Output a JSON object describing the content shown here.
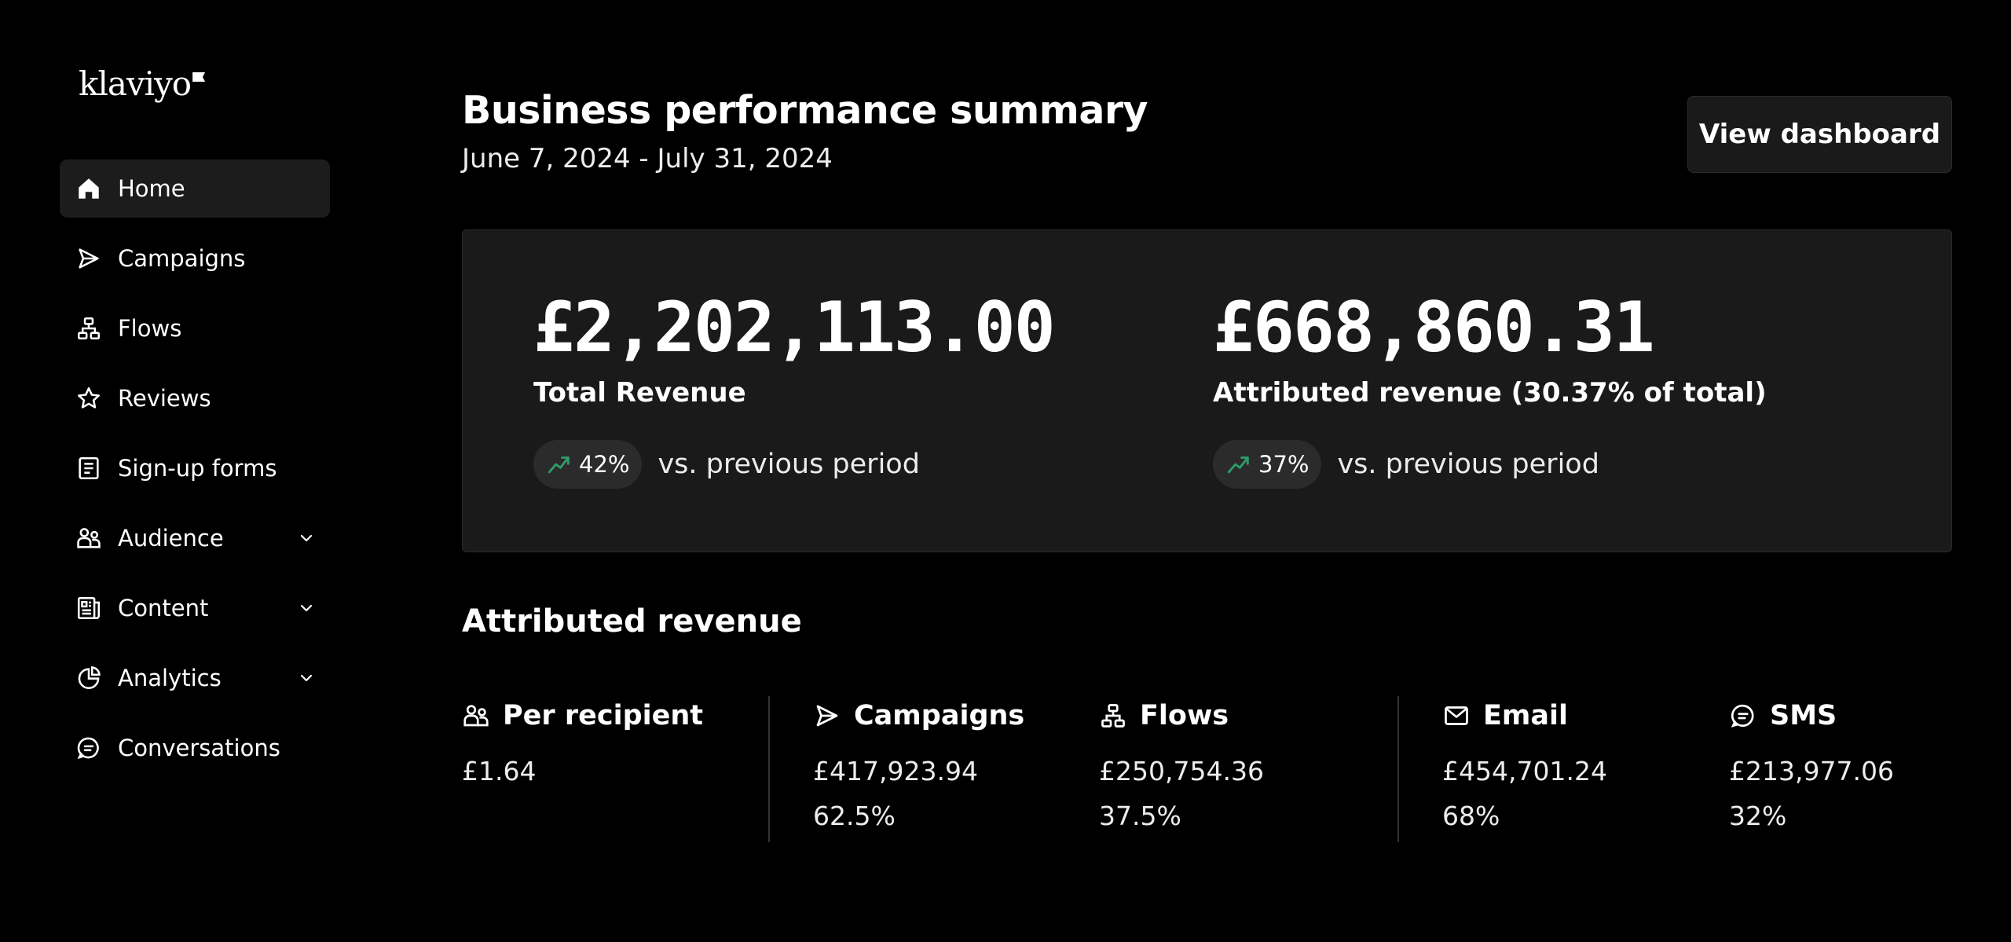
{
  "brand": {
    "logo_text": "klaviyo"
  },
  "sidebar": {
    "items": [
      {
        "label": "Home",
        "icon": "home-icon",
        "active": true
      },
      {
        "label": "Campaigns",
        "icon": "send-icon"
      },
      {
        "label": "Flows",
        "icon": "flows-icon"
      },
      {
        "label": "Reviews",
        "icon": "star-icon"
      },
      {
        "label": "Sign-up forms",
        "icon": "form-icon"
      },
      {
        "label": "Audience",
        "icon": "audience-icon",
        "expandable": true
      },
      {
        "label": "Content",
        "icon": "content-icon",
        "expandable": true
      },
      {
        "label": "Analytics",
        "icon": "pie-chart-icon",
        "expandable": true
      },
      {
        "label": "Conversations",
        "icon": "chat-icon"
      }
    ]
  },
  "header": {
    "title": "Business performance summary",
    "date_range": "June 7, 2024 - July 31, 2024",
    "view_dashboard_label": "View dashboard"
  },
  "summary": {
    "total": {
      "value": "£2,202,113.00",
      "label": "Total Revenue",
      "change": "42%",
      "comparison": "vs. previous period"
    },
    "attributed": {
      "value": "£668,860.31",
      "label": "Attributed revenue (30.37% of total)",
      "change": "37%",
      "comparison": "vs. previous period"
    }
  },
  "attributed_revenue": {
    "title": "Attributed revenue",
    "per_recipient": {
      "label": "Per recipient",
      "value": "£1.64",
      "icon": "audience-icon"
    },
    "campaigns": {
      "label": "Campaigns",
      "value": "£417,923.94",
      "percent": "62.5%",
      "icon": "send-icon"
    },
    "flows": {
      "label": "Flows",
      "value": "£250,754.36",
      "percent": "37.5%",
      "icon": "flows-icon"
    },
    "email": {
      "label": "Email",
      "value": "£454,701.24",
      "percent": "68%",
      "icon": "mail-icon"
    },
    "sms": {
      "label": "SMS",
      "value": "£213,977.06",
      "percent": "32%",
      "icon": "chat-icon"
    }
  },
  "colors": {
    "background": "#000000",
    "card": "#1a1a1a",
    "trend_up": "#2e9e6a",
    "text": "#ffffff"
  }
}
